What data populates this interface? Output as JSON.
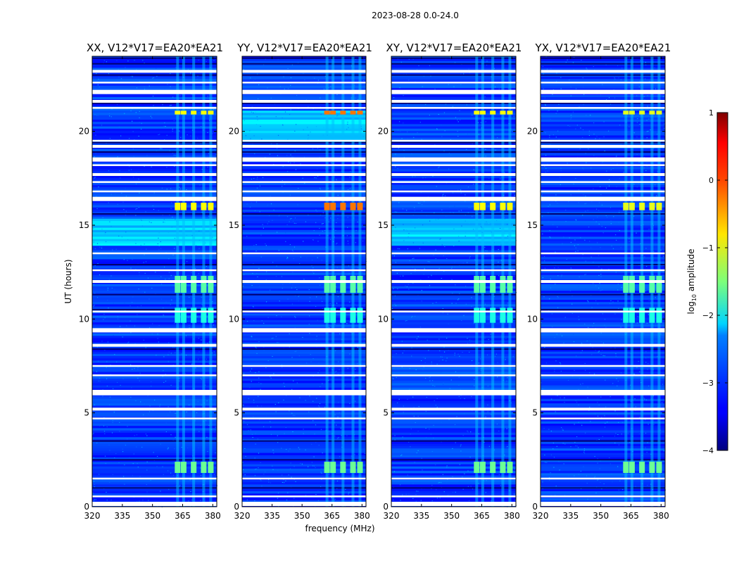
{
  "chart_data": {
    "type": "heatmap",
    "title": "2023-08-28 0.0-24.0",
    "xlabel": "frequency (MHz)",
    "ylabel": "UT (hours)",
    "xlim": [
      320,
      382
    ],
    "ylim": [
      0,
      24
    ],
    "xticks": [
      320,
      335,
      350,
      365,
      380
    ],
    "yticks": [
      0,
      5,
      10,
      15,
      20
    ],
    "panels": [
      {
        "title": "XX, V12*V17=EA20*EA21",
        "ylabel_shown": true,
        "hot_level": -0.9,
        "bright_low_band": [
          13.8,
          15.3
        ]
      },
      {
        "title": "YY, V12*V17=EA20*EA21",
        "ylabel_shown": false,
        "hot_level": -0.2,
        "bright_low_band": [
          19.4,
          21.0
        ]
      },
      {
        "title": "XY, V12*V17=EA20*EA21",
        "ylabel_shown": false,
        "hot_level": -0.9,
        "bright_low_band": [
          13.8,
          15.3
        ]
      },
      {
        "title": "YX, V12*V17=EA20*EA21",
        "ylabel_shown": false,
        "hot_level": -1.0,
        "bright_low_band": null
      }
    ],
    "flagged_hours": [
      0.15,
      0.55,
      1.5,
      5.2,
      4.7,
      6.05,
      6.15,
      7.0,
      7.5,
      8.6,
      9.4,
      10.4,
      12.0,
      12.6,
      13.5,
      16.4,
      16.8,
      17.3,
      17.7,
      18.2,
      18.5,
      19.2,
      19.5,
      21.25,
      21.6,
      22.1,
      22.6,
      23.2
    ],
    "dark_hours": [
      1.0,
      2.5,
      3.5,
      6.1,
      8.4,
      10.5,
      11.3,
      12.9,
      15.6,
      18.9,
      19.4,
      21.5,
      23.0,
      23.6,
      23.9
    ],
    "rfi_channels_mhz": [
      362.5,
      365.5,
      370.5,
      375.5,
      379.0
    ],
    "rfi_events": [
      {
        "t0": 1.8,
        "t1": 2.4,
        "level": -1.6
      },
      {
        "t0": 9.8,
        "t1": 10.6,
        "level": -2.0
      },
      {
        "t0": 11.4,
        "t1": 12.3,
        "level": -1.7
      },
      {
        "t0": 15.8,
        "t1": 16.2,
        "level": "hot"
      },
      {
        "t0": 20.9,
        "t1": 21.1,
        "level": "hot"
      }
    ],
    "colorbar": {
      "label_prefix": "log",
      "label_subscript": "10",
      "label_suffix": " amplitude",
      "range": [
        -4,
        1
      ],
      "ticks": [
        1,
        0,
        -1,
        -2,
        -3,
        -4
      ],
      "tick_labels": [
        "1",
        "0",
        "−1",
        "−2",
        "−3",
        "−4"
      ],
      "colormap": "jet"
    }
  }
}
